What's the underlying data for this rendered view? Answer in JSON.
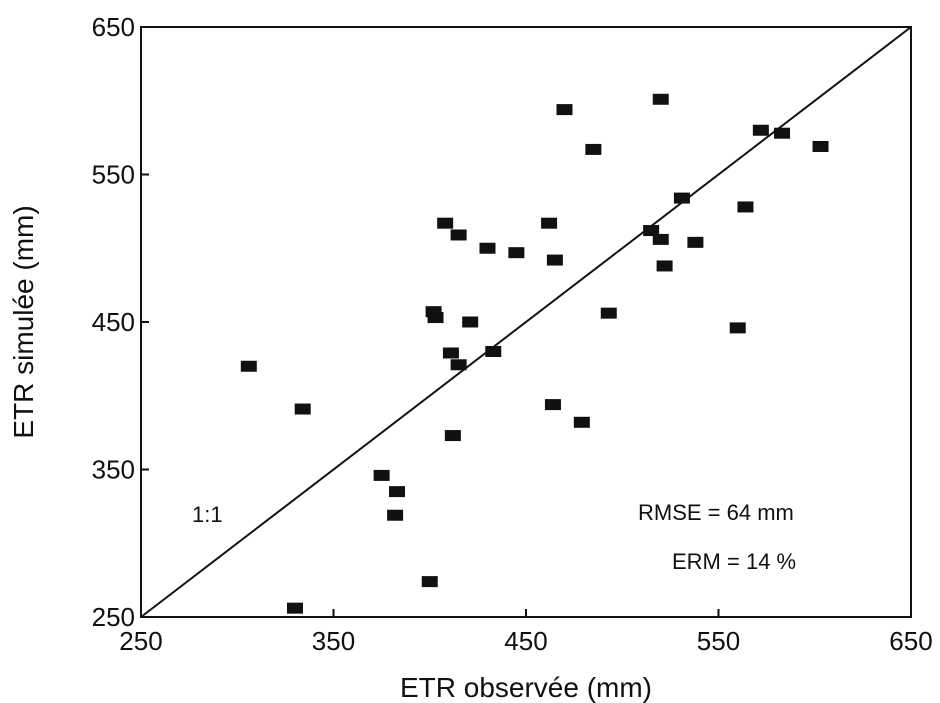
{
  "chart_data": {
    "type": "scatter",
    "title": "",
    "xlabel": "ETR observée (mm)",
    "ylabel": "ETR simulée (mm)",
    "xlim": [
      250,
      650
    ],
    "ylim": [
      250,
      650
    ],
    "xticks": [
      "250",
      "350",
      "450",
      "550",
      "650"
    ],
    "yticks": [
      "250",
      "350",
      "450",
      "550",
      "650"
    ],
    "grid": false,
    "reference_line": {
      "label": "1:1",
      "from": [
        250,
        250
      ],
      "to": [
        650,
        650
      ]
    },
    "annotations": [
      "RMSE = 64 mm",
      "ERM = 14 %"
    ],
    "series": [
      {
        "marker": "rectangle",
        "color": "#111111",
        "points": [
          {
            "x": 306,
            "y": 420
          },
          {
            "x": 334,
            "y": 391
          },
          {
            "x": 330,
            "y": 256
          },
          {
            "x": 375,
            "y": 346
          },
          {
            "x": 383,
            "y": 335
          },
          {
            "x": 382,
            "y": 319
          },
          {
            "x": 400,
            "y": 274
          },
          {
            "x": 402,
            "y": 457
          },
          {
            "x": 403,
            "y": 453
          },
          {
            "x": 408,
            "y": 517
          },
          {
            "x": 411,
            "y": 429
          },
          {
            "x": 412,
            "y": 373
          },
          {
            "x": 415,
            "y": 421
          },
          {
            "x": 415,
            "y": 509
          },
          {
            "x": 421,
            "y": 450
          },
          {
            "x": 430,
            "y": 500
          },
          {
            "x": 433,
            "y": 430
          },
          {
            "x": 445,
            "y": 497
          },
          {
            "x": 462,
            "y": 517
          },
          {
            "x": 464,
            "y": 394
          },
          {
            "x": 465,
            "y": 492
          },
          {
            "x": 470,
            "y": 594
          },
          {
            "x": 479,
            "y": 382
          },
          {
            "x": 485,
            "y": 567
          },
          {
            "x": 493,
            "y": 456
          },
          {
            "x": 515,
            "y": 512
          },
          {
            "x": 520,
            "y": 601
          },
          {
            "x": 520,
            "y": 506
          },
          {
            "x": 522,
            "y": 488
          },
          {
            "x": 531,
            "y": 534
          },
          {
            "x": 538,
            "y": 504
          },
          {
            "x": 560,
            "y": 446
          },
          {
            "x": 564,
            "y": 528
          },
          {
            "x": 572,
            "y": 580
          },
          {
            "x": 583,
            "y": 578
          },
          {
            "x": 603,
            "y": 569
          }
        ]
      }
    ]
  }
}
